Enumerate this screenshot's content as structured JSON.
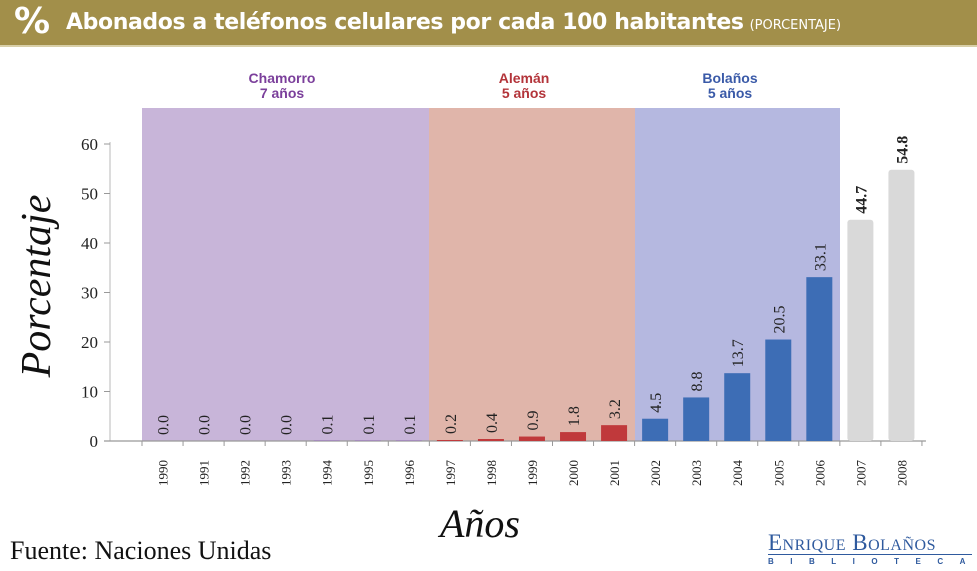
{
  "header": {
    "icon": "percent-icon",
    "icon_glyph": "%",
    "title": "Abonados a teléfonos celulares por cada 100 habitantes",
    "unit": "(PORCENTAJE)"
  },
  "colors": {
    "header_bg": "#a28f4a",
    "chamorro_band": "#c8b5d9",
    "aleman_band": "#e0b5aa",
    "bolanos_band": "#b5b8e0",
    "chamorro_text": "#7b3f9b",
    "aleman_text": "#b3343a",
    "bolanos_text": "#3a5aa8",
    "bar_red": "#c0393b",
    "bar_blue": "#3d6db5",
    "bar_gray": "#d9d9d9"
  },
  "source": "Fuente: Naciones Unidas",
  "logo": {
    "main": "Enrique Bolaños",
    "sub": "BIBLIOTECA"
  },
  "chart_data": {
    "type": "bar",
    "title": "Abonados a teléfonos celulares por cada 100 habitantes",
    "xlabel": "Años",
    "ylabel": "Porcentaje",
    "ylim": [
      0,
      60
    ],
    "yticks": [
      0,
      10,
      20,
      30,
      40,
      50,
      60
    ],
    "grid": false,
    "categories": [
      "1990",
      "1991",
      "1992",
      "1993",
      "1994",
      "1995",
      "1996",
      "1997",
      "1998",
      "1999",
      "2000",
      "2001",
      "2002",
      "2003",
      "2004",
      "2005",
      "2006",
      "2007",
      "2008"
    ],
    "values": [
      0.0,
      0.0,
      0.0,
      0.0,
      0.1,
      0.1,
      0.1,
      0.2,
      0.4,
      0.9,
      1.8,
      3.2,
      4.5,
      8.8,
      13.7,
      20.5,
      33.1,
      44.7,
      54.8
    ],
    "value_labels": [
      "0.0",
      "0.0",
      "0.0",
      "0.0",
      "0.1",
      "0.1",
      "0.1",
      "0.2",
      "0.4",
      "0.9",
      "1.8",
      "3.2",
      "4.5",
      "8.8",
      "13.7",
      "20.5",
      "33.1",
      "44.7",
      "54.8"
    ],
    "periods": [
      {
        "name": "Chamorro",
        "duration": "7 años",
        "start": "1990",
        "end": "1996",
        "color_key": "chamorro"
      },
      {
        "name": "Alemán",
        "duration": "5 años",
        "start": "1997",
        "end": "2001",
        "color_key": "aleman"
      },
      {
        "name": "Bolaños",
        "duration": "5 años",
        "start": "2002",
        "end": "2006",
        "color_key": "bolanos"
      }
    ]
  }
}
